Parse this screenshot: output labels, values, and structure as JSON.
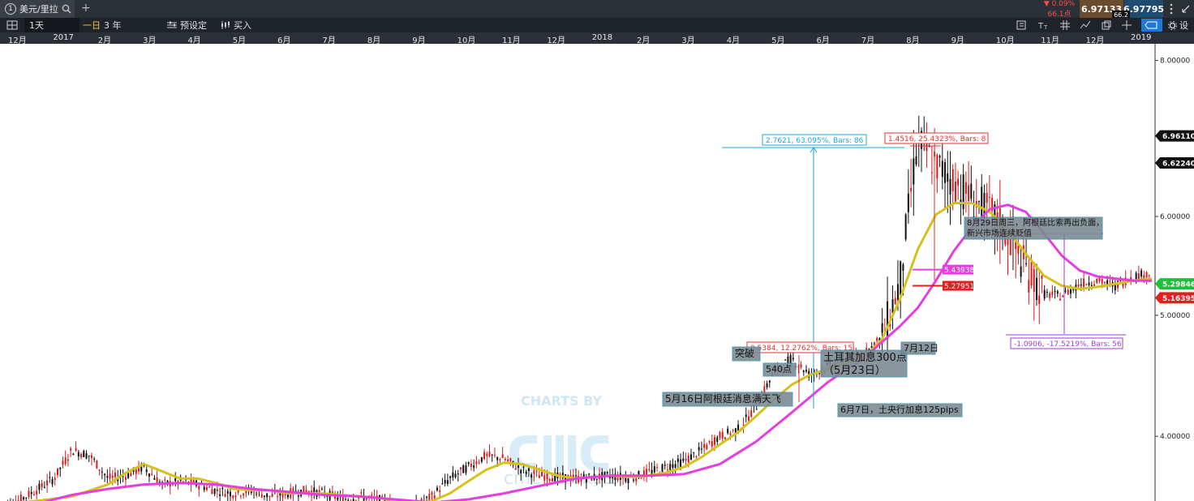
{
  "window": {
    "tab_number": "1",
    "tab_title": "美元/里拉",
    "add_tab": "+"
  },
  "quote": {
    "change_pct": "▼ 0.09%",
    "change_pts": "66.1点",
    "bid": "6.97133",
    "ask": "6.97795",
    "spread": "66.2"
  },
  "toolbar": {
    "interval": "1天",
    "interval_short": "一日",
    "range": "3 年",
    "preset": "预设定",
    "buy": "买入",
    "settings": "设"
  },
  "watermark": {
    "line1": "CHARTS BY",
    "line2": "cmc markets"
  },
  "chart_data": {
    "type": "candlestick",
    "title": "",
    "x_ticks": [
      "12月",
      "2017",
      "2月",
      "3月",
      "4月",
      "5月",
      "6月",
      "7月",
      "8月",
      "9月",
      "10月",
      "11月",
      "12月",
      "2018",
      "2月",
      "3月",
      "4月",
      "5月",
      "6月",
      "7月",
      "8月",
      "9月",
      "10月",
      "11月",
      "12月",
      "2019"
    ],
    "y_ticks": [
      "8.00000",
      "6.00000",
      "5.00000",
      "4.00000"
    ],
    "ylim": [
      3.55,
      8.25
    ],
    "y_scale": "log",
    "price_labels": [
      {
        "value": 6.9611,
        "text": "6.96110",
        "color": "#111111"
      },
      {
        "value": 6.6224,
        "text": "6.62240",
        "color": "#111111"
      },
      {
        "value": 5.29846,
        "text": "5.29846",
        "color": "#1fbf3a"
      },
      {
        "value": 5.16395,
        "text": "5.16395",
        "color": "#e02020"
      }
    ],
    "series": [
      {
        "name": "",
        "color": "#d4c21a",
        "points": [
          [
            0,
            3.53
          ],
          [
            2,
            3.55
          ],
          [
            4,
            3.58
          ],
          [
            6,
            3.66
          ],
          [
            7,
            3.74
          ],
          [
            8,
            3.8
          ],
          [
            9,
            3.75
          ],
          [
            10,
            3.7
          ],
          [
            11,
            3.7
          ],
          [
            12,
            3.67
          ],
          [
            13,
            3.63
          ],
          [
            14,
            3.62
          ],
          [
            15,
            3.62
          ],
          [
            16,
            3.6
          ],
          [
            17,
            3.6
          ],
          [
            18,
            3.6
          ],
          [
            19,
            3.59
          ],
          [
            20,
            3.58
          ],
          [
            21,
            3.57
          ],
          [
            22,
            3.55
          ],
          [
            23,
            3.54
          ],
          [
            24,
            3.55
          ],
          [
            25,
            3.6
          ],
          [
            26,
            3.68
          ],
          [
            27,
            3.76
          ],
          [
            28,
            3.81
          ],
          [
            29,
            3.8
          ],
          [
            30,
            3.76
          ],
          [
            31,
            3.72
          ],
          [
            32,
            3.7
          ],
          [
            33,
            3.71
          ],
          [
            34,
            3.72
          ],
          [
            35,
            3.71
          ],
          [
            36,
            3.72
          ],
          [
            37,
            3.74
          ],
          [
            38,
            3.78
          ],
          [
            39,
            3.85
          ],
          [
            40,
            3.94
          ],
          [
            41,
            4.03
          ],
          [
            42,
            4.15
          ],
          [
            43,
            4.28
          ],
          [
            44,
            4.4
          ],
          [
            45,
            4.48
          ],
          [
            46,
            4.53
          ],
          [
            47,
            4.58
          ],
          [
            48,
            4.63
          ],
          [
            49,
            4.78
          ],
          [
            50,
            5.15
          ],
          [
            51,
            5.65
          ],
          [
            52,
            6.02
          ],
          [
            53,
            6.15
          ],
          [
            54,
            6.15
          ],
          [
            55,
            6.05
          ],
          [
            56,
            5.85
          ],
          [
            57,
            5.6
          ],
          [
            58,
            5.38
          ],
          [
            59,
            5.28
          ],
          [
            60,
            5.25
          ],
          [
            61,
            5.27
          ],
          [
            62,
            5.3
          ],
          [
            63,
            5.33
          ],
          [
            64,
            5.35
          ]
        ]
      },
      {
        "name": "",
        "color": "#e43ee0",
        "points": [
          [
            0,
            3.47
          ],
          [
            2,
            3.53
          ],
          [
            4,
            3.59
          ],
          [
            6,
            3.63
          ],
          [
            8,
            3.66
          ],
          [
            10,
            3.67
          ],
          [
            12,
            3.66
          ],
          [
            14,
            3.63
          ],
          [
            16,
            3.61
          ],
          [
            18,
            3.59
          ],
          [
            20,
            3.58
          ],
          [
            22,
            3.56
          ],
          [
            24,
            3.54
          ],
          [
            26,
            3.56
          ],
          [
            28,
            3.6
          ],
          [
            30,
            3.65
          ],
          [
            32,
            3.7
          ],
          [
            34,
            3.72
          ],
          [
            36,
            3.72
          ],
          [
            38,
            3.73
          ],
          [
            40,
            3.8
          ],
          [
            42,
            3.96
          ],
          [
            44,
            4.18
          ],
          [
            46,
            4.42
          ],
          [
            48,
            4.62
          ],
          [
            50,
            4.9
          ],
          [
            51,
            5.07
          ],
          [
            52,
            5.33
          ],
          [
            53,
            5.63
          ],
          [
            54,
            5.88
          ],
          [
            55,
            6.08
          ],
          [
            56,
            6.13
          ],
          [
            57,
            6.05
          ],
          [
            58,
            5.82
          ],
          [
            59,
            5.58
          ],
          [
            60,
            5.43
          ],
          [
            61,
            5.37
          ],
          [
            62,
            5.35
          ],
          [
            63,
            5.33
          ],
          [
            64,
            5.33
          ]
        ]
      }
    ],
    "price_path": [
      [
        0,
        3.5
      ],
      [
        1,
        3.55
      ],
      [
        2,
        3.62
      ],
      [
        3,
        3.7
      ],
      [
        4,
        3.9
      ],
      [
        5,
        3.86
      ],
      [
        6,
        3.7
      ],
      [
        7,
        3.72
      ],
      [
        8,
        3.78
      ],
      [
        9,
        3.66
      ],
      [
        10,
        3.68
      ],
      [
        11,
        3.66
      ],
      [
        12,
        3.62
      ],
      [
        13,
        3.6
      ],
      [
        14,
        3.62
      ],
      [
        15,
        3.58
      ],
      [
        16,
        3.6
      ],
      [
        17,
        3.62
      ],
      [
        18,
        3.6
      ],
      [
        19,
        3.56
      ],
      [
        20,
        3.58
      ],
      [
        21,
        3.56
      ],
      [
        22,
        3.52
      ],
      [
        23,
        3.51
      ],
      [
        24,
        3.58
      ],
      [
        25,
        3.7
      ],
      [
        26,
        3.78
      ],
      [
        27,
        3.86
      ],
      [
        28,
        3.84
      ],
      [
        29,
        3.76
      ],
      [
        30,
        3.72
      ],
      [
        31,
        3.71
      ],
      [
        32,
        3.7
      ],
      [
        33,
        3.71
      ],
      [
        34,
        3.72
      ],
      [
        35,
        3.7
      ],
      [
        36,
        3.74
      ],
      [
        37,
        3.78
      ],
      [
        38,
        3.82
      ],
      [
        39,
        3.9
      ],
      [
        40,
        4.0
      ],
      [
        41,
        4.05
      ],
      [
        42,
        4.22
      ],
      [
        43,
        4.5
      ],
      [
        44,
        4.62
      ],
      [
        45,
        4.48
      ],
      [
        46,
        4.55
      ],
      [
        47,
        4.6
      ],
      [
        48,
        4.65
      ],
      [
        49,
        4.8
      ],
      [
        50,
        5.3
      ],
      [
        51,
        6.9
      ],
      [
        52,
        6.6
      ],
      [
        53,
        6.4
      ],
      [
        54,
        6.2
      ],
      [
        55,
        6.05
      ],
      [
        56,
        5.8
      ],
      [
        57,
        5.45
      ],
      [
        58,
        5.2
      ],
      [
        59,
        5.18
      ],
      [
        60,
        5.3
      ],
      [
        61,
        5.33
      ],
      [
        62,
        5.28
      ],
      [
        63,
        5.38
      ],
      [
        64,
        5.4
      ]
    ],
    "measurements": [
      {
        "text": "2.7621, 63.095%, Bars: 86",
        "color": "#1ea7d6"
      },
      {
        "text": "1.4516, 25.4323%, Bars: 8",
        "color": "#e53030"
      },
      {
        "text": "0.5384, 12.2762%, Bars: 15",
        "color": "#e53030"
      },
      {
        "text": "-1.0906, -17.5219%, Bars: 56",
        "color": "#9b3ee0"
      }
    ],
    "level_tags": [
      {
        "value": 5.43938,
        "text": "5.43938",
        "color": "#e43ee0"
      },
      {
        "value": 5.27951,
        "text": "5.27951",
        "color": "#e02020"
      }
    ],
    "annotations": [
      "突破",
      "540点",
      "土耳其加息300点",
      "（5月23日）",
      "7月12日",
      "5月16日阿根廷消息满天飞",
      "6月7日，土央行加息125pips",
      "8月29日周三，阿根廷比索再出负面，",
      "新兴市场连续贬值"
    ]
  }
}
